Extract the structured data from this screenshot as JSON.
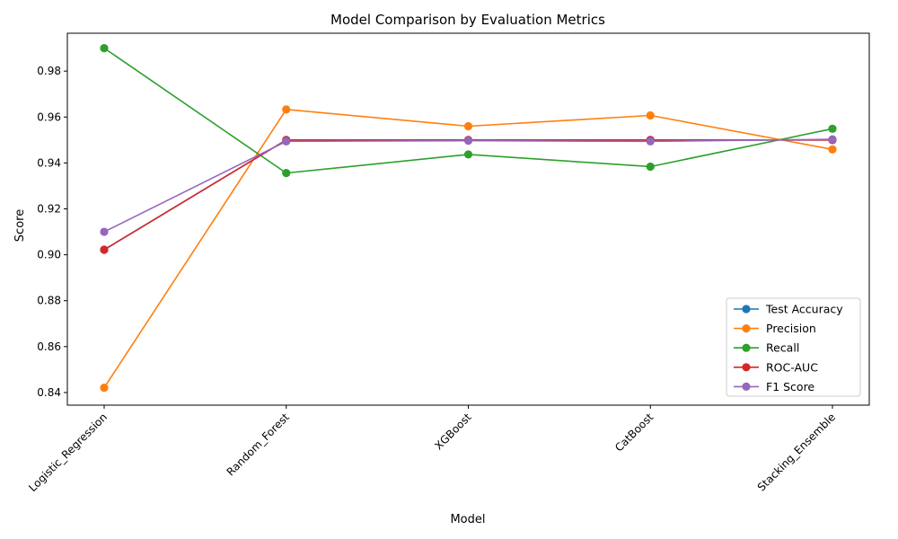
{
  "chart_data": {
    "type": "line",
    "title": "Model Comparison by Evaluation Metrics",
    "xlabel": "Model",
    "ylabel": "Score",
    "categories": [
      "Logistic_Regression",
      "Random_Forest",
      "XGBoost",
      "CatBoost",
      "Stacking_Ensemble"
    ],
    "ylim": [
      0.8345,
      0.9965
    ],
    "yticks": [
      0.84,
      0.86,
      0.88,
      0.9,
      0.92,
      0.94,
      0.96,
      0.98
    ],
    "ytick_labels": [
      "0.84",
      "0.86",
      "0.88",
      "0.90",
      "0.92",
      "0.94",
      "0.96",
      "0.98"
    ],
    "grid": false,
    "legend_position": "lower-right",
    "series": [
      {
        "name": "Test Accuracy",
        "color": "#1f77b4",
        "values": [
          0.9022,
          0.95,
          0.95,
          0.95,
          0.95
        ]
      },
      {
        "name": "Precision",
        "color": "#ff7f0e",
        "values": [
          0.8421,
          0.9633,
          0.956,
          0.9607,
          0.9459
        ]
      },
      {
        "name": "Recall",
        "color": "#2ca02c",
        "values": [
          0.99,
          0.9356,
          0.9437,
          0.9384,
          0.9549
        ]
      },
      {
        "name": "ROC-AUC",
        "color": "#d62728",
        "values": [
          0.9022,
          0.95,
          0.95,
          0.95,
          0.95
        ]
      },
      {
        "name": "F1 Score",
        "color": "#9467bd",
        "values": [
          0.91,
          0.9494,
          0.9497,
          0.9494,
          0.9503
        ]
      }
    ]
  }
}
